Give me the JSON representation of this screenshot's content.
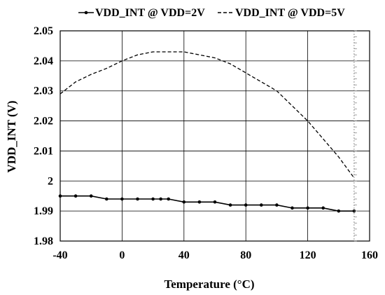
{
  "chart_data": {
    "type": "line",
    "title": "",
    "xlabel": "Temperature (°C)",
    "ylabel": "VDD_INT (V)",
    "xlim": [
      -40,
      160
    ],
    "ylim": [
      1.98,
      2.05
    ],
    "x_ticks": [
      "-40",
      "0",
      "40",
      "80",
      "120",
      "160"
    ],
    "y_ticks": [
      "1.98",
      "1.99",
      "2",
      "2.01",
      "2.02",
      "2.03",
      "2.04",
      "2.05"
    ],
    "grid": true,
    "legend_position": "top",
    "series": [
      {
        "name": "VDD_INT @ VDD=2V",
        "style": "solid-with-markers",
        "color": "#000000",
        "x": [
          -40,
          -30,
          -20,
          -10,
          0,
          10,
          20,
          25,
          30,
          40,
          50,
          60,
          70,
          80,
          90,
          100,
          110,
          120,
          130,
          140,
          150
        ],
        "y": [
          1.995,
          1.995,
          1.995,
          1.994,
          1.994,
          1.994,
          1.994,
          1.994,
          1.994,
          1.993,
          1.993,
          1.993,
          1.992,
          1.992,
          1.992,
          1.992,
          1.991,
          1.991,
          1.991,
          1.99,
          1.99
        ]
      },
      {
        "name": "VDD_INT @ VDD=5V",
        "style": "dashed",
        "color": "#000000",
        "x": [
          -40,
          -30,
          -20,
          -10,
          0,
          10,
          20,
          30,
          40,
          50,
          60,
          70,
          80,
          90,
          100,
          110,
          120,
          130,
          140,
          150
        ],
        "y": [
          2.029,
          2.033,
          2.0355,
          2.0375,
          2.04,
          2.042,
          2.043,
          2.043,
          2.043,
          2.042,
          2.041,
          2.039,
          2.036,
          2.033,
          2.03,
          2.025,
          2.02,
          2.014,
          2.008,
          2.001
        ]
      }
    ]
  }
}
